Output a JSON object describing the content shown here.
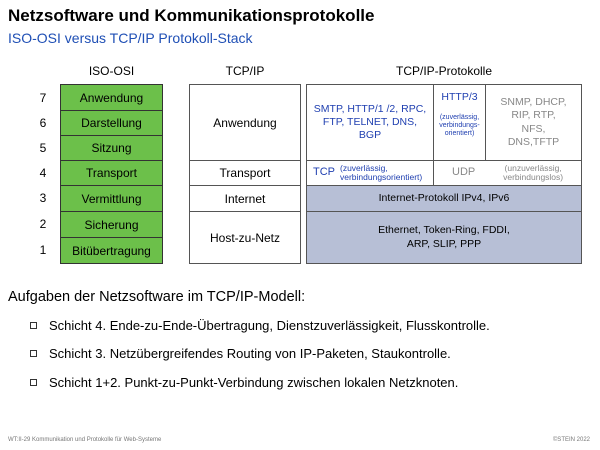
{
  "header": {
    "title": "Netzsoftware und Kommunikationsprotokolle",
    "subtitle": "ISO-OSI versus TCP/IP Protokoll-Stack"
  },
  "columns": {
    "osi": "ISO-OSI",
    "tcpip": "TCP/IP",
    "protocols": "TCP/IP-Protokolle"
  },
  "osi_layers": [
    {
      "num": "7",
      "label": "Anwendung"
    },
    {
      "num": "6",
      "label": "Darstellung"
    },
    {
      "num": "5",
      "label": "Sitzung"
    },
    {
      "num": "4",
      "label": "Transport"
    },
    {
      "num": "3",
      "label": "Vermittlung"
    },
    {
      "num": "2",
      "label": "Sicherung"
    },
    {
      "num": "1",
      "label": "Bitübertragung"
    }
  ],
  "tcpip_layers": {
    "application": "Anwendung",
    "transport": "Transport",
    "internet": "Internet",
    "host": "Host-zu-Netz"
  },
  "protocols": {
    "app_main": "SMTP, HTTP/1 /2, RPC, FTP, TELNET, DNS, BGP",
    "http3": "HTTP/3",
    "http3_note": "(zuverlässig, verbindungs-orientiert)",
    "app_other": "SNMP, DHCP, RIP, RTP, NFS, DNS,TFTP",
    "tcp": "TCP",
    "tcp_note": "(zuverlässig, verbindungsorientiert)",
    "udp": "UDP",
    "udp_note": "(unzuverlässig, verbindungslos)",
    "internet": "Internet-Protokoll IPv4, IPv6",
    "link": "Ethernet, Token-Ring, FDDI, ARP, SLIP, PPP"
  },
  "tasks": {
    "heading": "Aufgaben der Netzsoftware im TCP/IP-Modell:",
    "items": [
      "Schicht 4. Ende-zu-Ende-Übertragung, Dienstzuverlässigkeit, Flusskontrolle.",
      "Schicht 3. Netzübergreifendes Routing von IP-Paketen, Staukontrolle.",
      "Schicht 1+2. Punkt-zu-Punkt-Verbindung zwischen lokalen Netzknoten."
    ]
  },
  "footer": {
    "left": "WT:II-29   Kommunikation und Protokolle für Web-Systeme",
    "right": "©STEIN 2022"
  }
}
